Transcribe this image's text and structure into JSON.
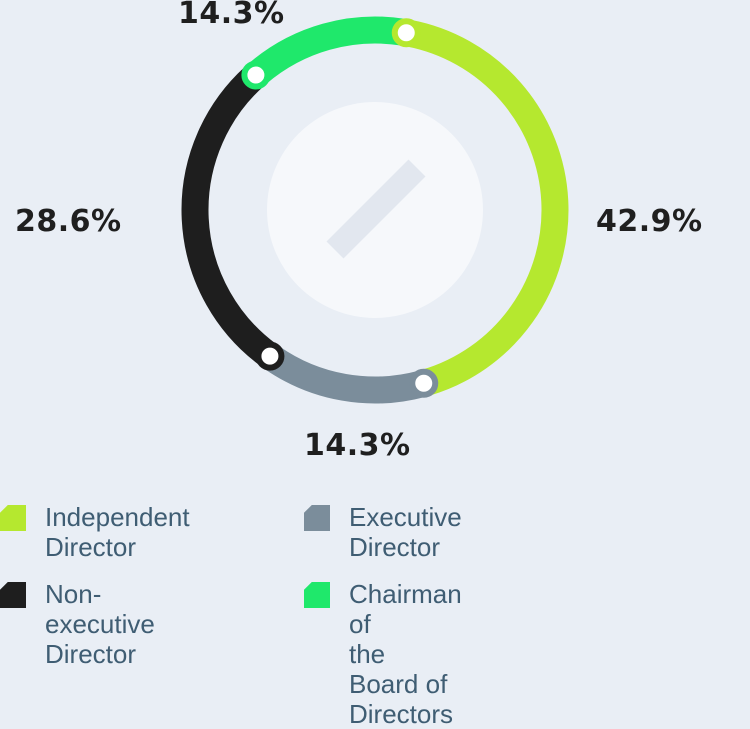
{
  "chart_data": {
    "type": "pie",
    "variant": "donut-ring",
    "slices": [
      {
        "label": "Independent\nDirector",
        "value": 42.9,
        "display": "42.9%",
        "color": "#b5e82f"
      },
      {
        "label": "Executive Director",
        "value": 14.3,
        "display": "14.3%",
        "color": "#7b8d9b"
      },
      {
        "label": "Non-executive\nDirector",
        "value": 28.6,
        "display": "28.6%",
        "color": "#1e1e1e"
      },
      {
        "label": "Chairman of\nthe Board of Directors",
        "value": 14.3,
        "display": "14.3%",
        "color": "#1fe86b"
      }
    ]
  },
  "center_icon": "diagonal-slash-icon",
  "legend": {
    "items": [
      {
        "label": "Independent\nDirector",
        "color": "#b5e82f"
      },
      {
        "label": "Executive Director",
        "color": "#7b8d9b"
      },
      {
        "label": "Non-executive\nDirector",
        "color": "#1e1e1e"
      },
      {
        "label": "Chairman of\nthe Board of Directors",
        "color": "#1fe86b"
      }
    ]
  }
}
